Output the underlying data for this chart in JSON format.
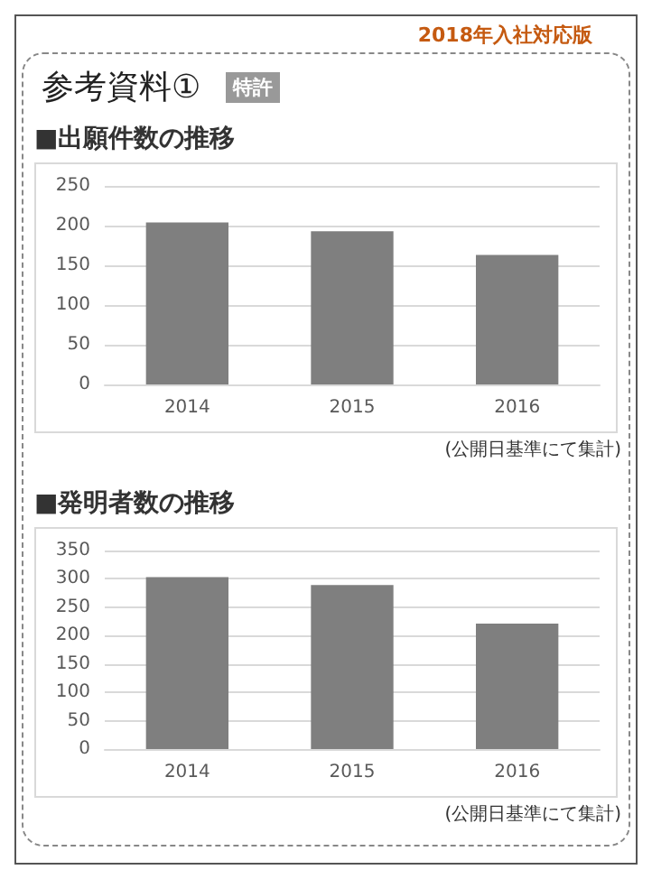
{
  "chart_data": [
    {
      "type": "other",
      "title": "参考資料①",
      "subtitle": "特許",
      "annotations": [
        "2018年入社対応版"
      ]
    },
    {
      "type": "bar",
      "title": "■出願件数の推移",
      "categories": [
        "2014",
        "2015",
        "2016"
      ],
      "values": [
        204,
        193,
        163
      ],
      "color": "#7f7f7f",
      "ylim": [
        0,
        250
      ],
      "yticks": [
        0,
        50,
        100,
        150,
        200,
        250
      ],
      "grid": "y",
      "annotations": [
        "(公開日基準にて集計)"
      ]
    },
    {
      "type": "bar",
      "title": "■発明者数の推移",
      "categories": [
        "2014",
        "2015",
        "2016"
      ],
      "values": [
        303,
        289,
        221
      ],
      "color": "#7f7f7f",
      "ylim": [
        0,
        350
      ],
      "yticks": [
        0,
        50,
        100,
        150,
        200,
        250,
        300,
        350
      ],
      "grid": "y",
      "annotations": [
        "(公開日基準にて集計)"
      ]
    }
  ]
}
